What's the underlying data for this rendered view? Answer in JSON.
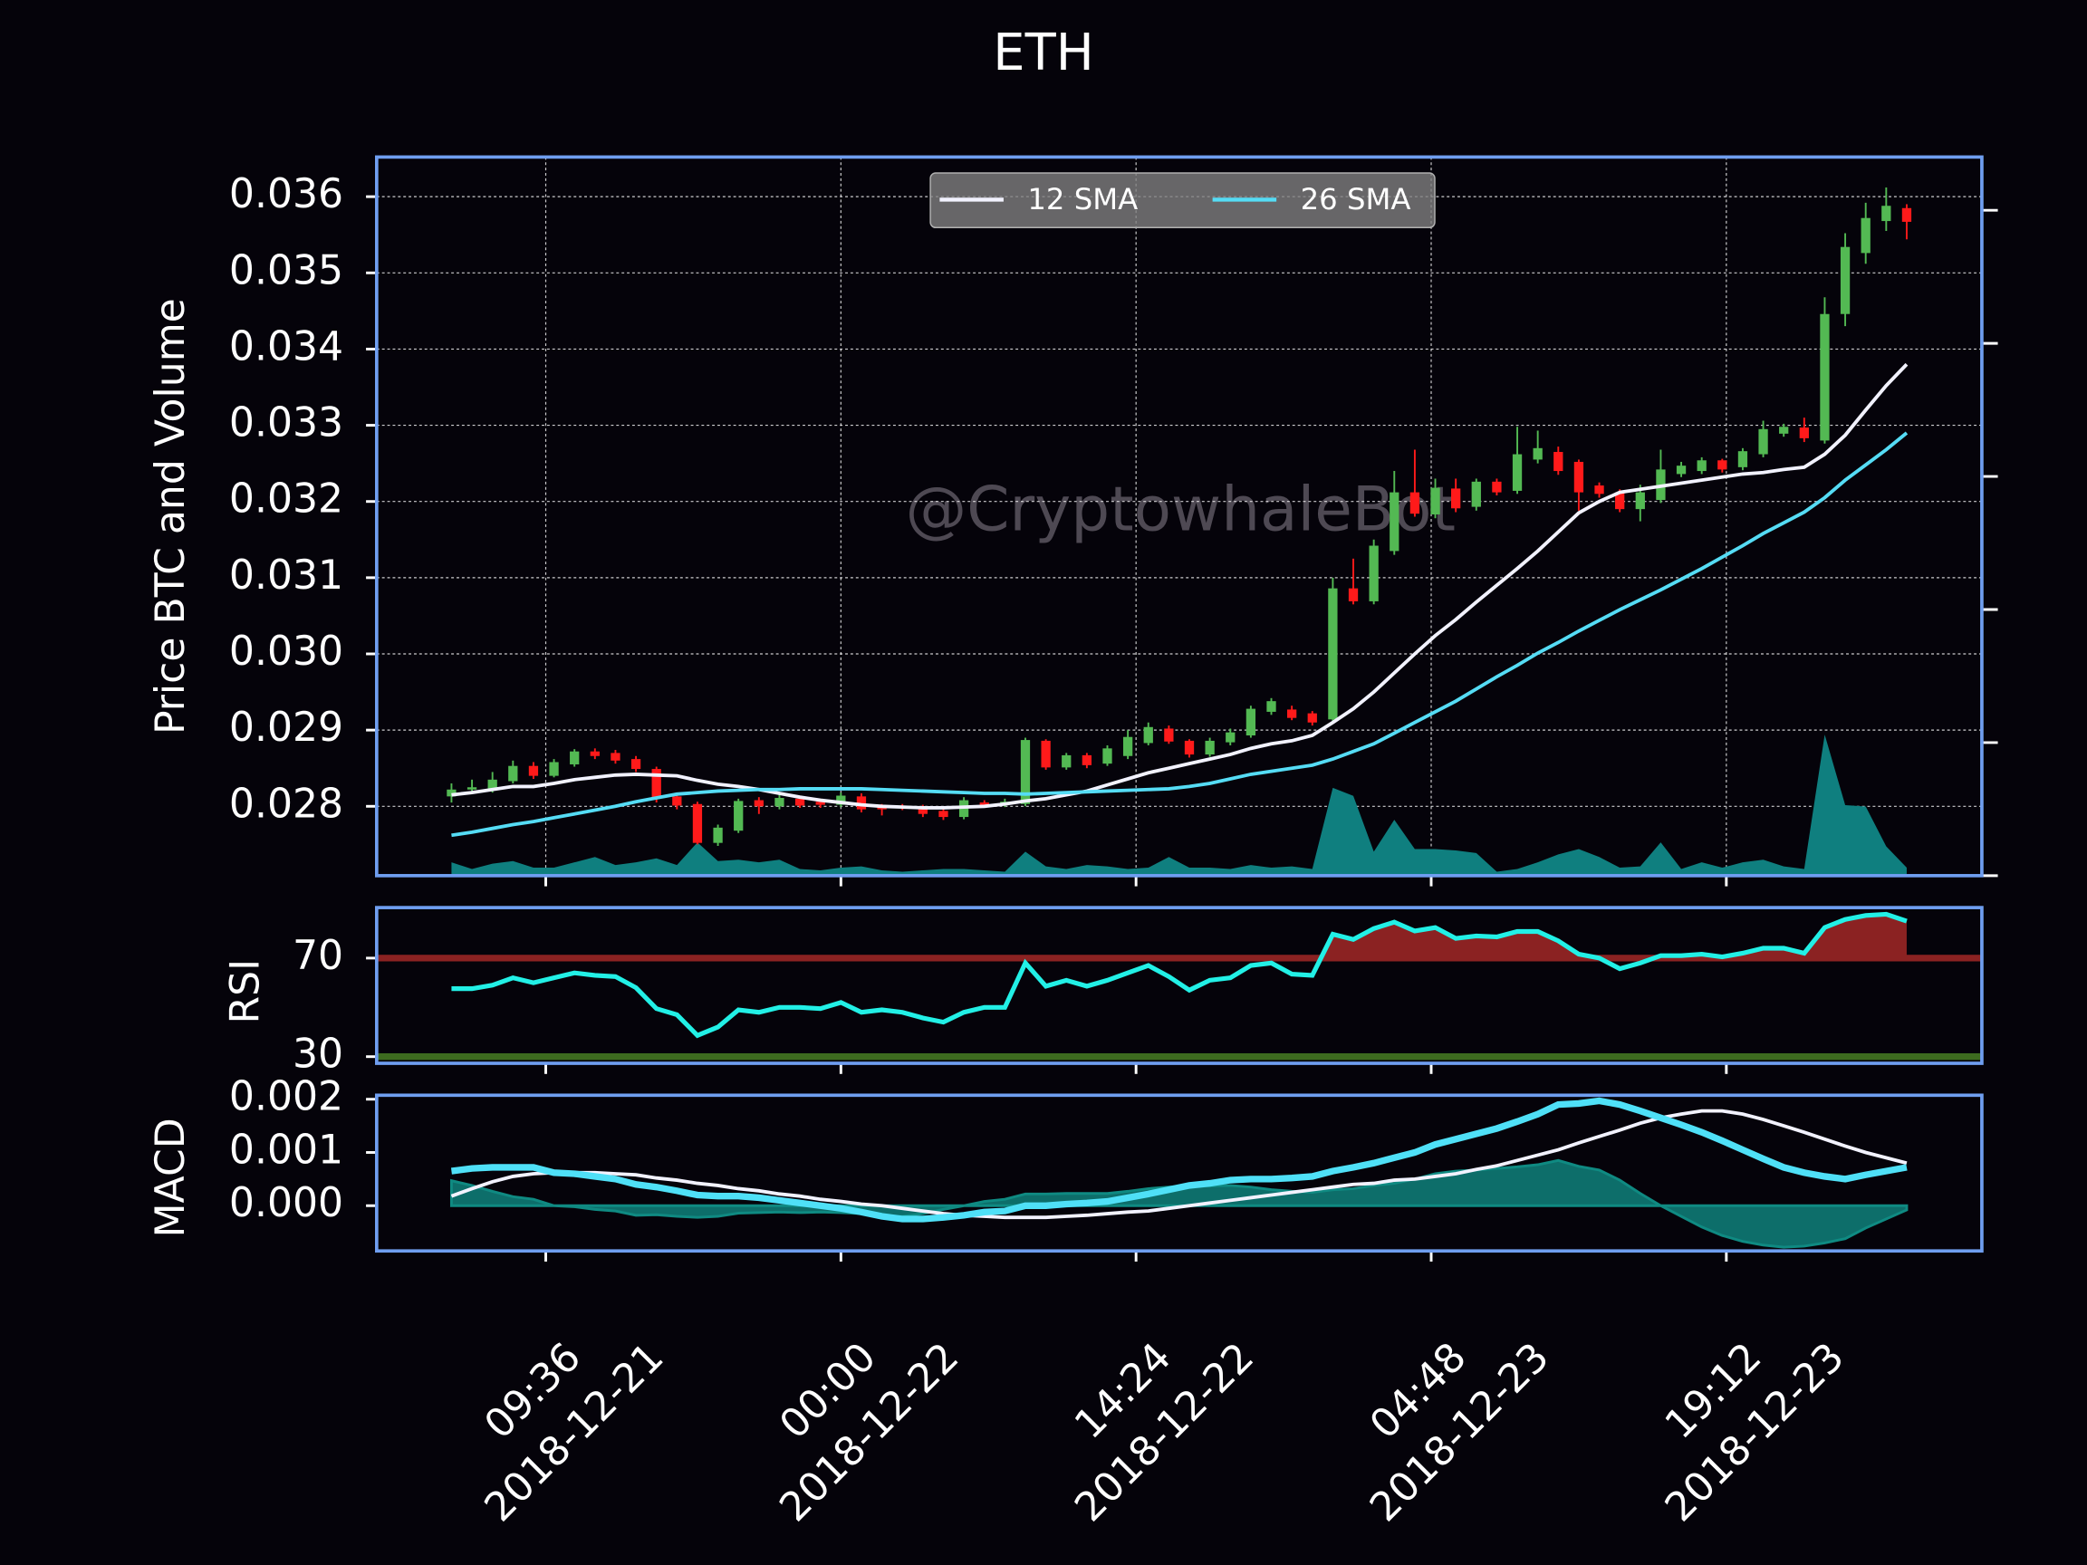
{
  "chart_data": {
    "type": "candlestick",
    "title": "ETH",
    "ylabel": "Price BTC and Volume",
    "watermark": "@CryptowhaleBot",
    "up_color": "#53b953",
    "down_color": "#ff1a1a",
    "grid": true,
    "legend_position": "upper center",
    "x": [
      "2018-12-21 05:00",
      "2018-12-21 06:00",
      "2018-12-21 07:00",
      "2018-12-21 08:00",
      "2018-12-21 09:00",
      "2018-12-21 10:00",
      "2018-12-21 11:00",
      "2018-12-21 12:00",
      "2018-12-21 13:00",
      "2018-12-21 14:00",
      "2018-12-21 15:00",
      "2018-12-21 16:00",
      "2018-12-21 17:00",
      "2018-12-21 18:00",
      "2018-12-21 19:00",
      "2018-12-21 20:00",
      "2018-12-21 21:00",
      "2018-12-21 22:00",
      "2018-12-21 23:00",
      "2018-12-22 00:00",
      "2018-12-22 01:00",
      "2018-12-22 02:00",
      "2018-12-22 03:00",
      "2018-12-22 04:00",
      "2018-12-22 05:00",
      "2018-12-22 06:00",
      "2018-12-22 07:00",
      "2018-12-22 08:00",
      "2018-12-22 09:00",
      "2018-12-22 10:00",
      "2018-12-22 11:00",
      "2018-12-22 12:00",
      "2018-12-22 13:00",
      "2018-12-22 14:00",
      "2018-12-22 15:00",
      "2018-12-22 16:00",
      "2018-12-22 17:00",
      "2018-12-22 18:00",
      "2018-12-22 19:00",
      "2018-12-22 20:00",
      "2018-12-22 21:00",
      "2018-12-22 22:00",
      "2018-12-22 23:00",
      "2018-12-23 00:00",
      "2018-12-23 01:00",
      "2018-12-23 02:00",
      "2018-12-23 03:00",
      "2018-12-23 04:00",
      "2018-12-23 05:00",
      "2018-12-23 06:00",
      "2018-12-23 07:00",
      "2018-12-23 08:00",
      "2018-12-23 09:00",
      "2018-12-23 10:00",
      "2018-12-23 11:00",
      "2018-12-23 12:00",
      "2018-12-23 13:00",
      "2018-12-23 14:00",
      "2018-12-23 15:00",
      "2018-12-23 16:00",
      "2018-12-23 17:00",
      "2018-12-23 18:00",
      "2018-12-23 19:00",
      "2018-12-23 20:00",
      "2018-12-23 21:00",
      "2018-12-23 22:00",
      "2018-12-23 23:00",
      "2018-12-24 00:00",
      "2018-12-24 01:00",
      "2018-12-24 02:00",
      "2018-12-24 03:00",
      "2018-12-24 04:00"
    ],
    "open": [
      0.02813,
      0.02822,
      0.02822,
      0.02833,
      0.02853,
      0.0284,
      0.02855,
      0.02872,
      0.0287,
      0.02862,
      0.02849,
      0.02813,
      0.02803,
      0.02752,
      0.02768,
      0.02808,
      0.028,
      0.0281,
      0.02806,
      0.02802,
      0.02813,
      0.028,
      0.028,
      0.02799,
      0.02794,
      0.02786,
      0.02805,
      0.02802,
      0.02803,
      0.02886,
      0.02851,
      0.02867,
      0.02856,
      0.02866,
      0.02883,
      0.02902,
      0.02886,
      0.02868,
      0.02884,
      0.02893,
      0.02924,
      0.02927,
      0.02922,
      0.02914,
      0.03086,
      0.03069,
      0.03135,
      0.03212,
      0.03183,
      0.03217,
      0.03193,
      0.03226,
      0.03214,
      0.03255,
      0.03265,
      0.03252,
      0.03221,
      0.03212,
      0.0319,
      0.03202,
      0.03236,
      0.0324,
      0.03254,
      0.03245,
      0.03262,
      0.03289,
      0.03297,
      0.0328,
      0.03446,
      0.03526,
      0.03568,
      0.03585
    ],
    "high": [
      0.0283,
      0.02835,
      0.02845,
      0.0286,
      0.02858,
      0.02862,
      0.02875,
      0.02876,
      0.02874,
      0.02866,
      0.02852,
      0.02818,
      0.02806,
      0.02776,
      0.0281,
      0.02812,
      0.02818,
      0.02814,
      0.0281,
      0.02818,
      0.02817,
      0.02803,
      0.02803,
      0.02802,
      0.02797,
      0.02812,
      0.02808,
      0.0281,
      0.0289,
      0.02888,
      0.0287,
      0.0287,
      0.0288,
      0.029,
      0.0291,
      0.02906,
      0.02888,
      0.0289,
      0.02902,
      0.02932,
      0.02942,
      0.02932,
      0.02925,
      0.031,
      0.03125,
      0.0315,
      0.0324,
      0.03268,
      0.0323,
      0.0323,
      0.0323,
      0.0323,
      0.03298,
      0.03293,
      0.03272,
      0.03255,
      0.03225,
      0.03216,
      0.03222,
      0.03268,
      0.03252,
      0.03258,
      0.03256,
      0.0327,
      0.03306,
      0.03302,
      0.0331,
      0.03468,
      0.03552,
      0.03592,
      0.03612,
      0.0359
    ],
    "low": [
      0.02805,
      0.02818,
      0.02818,
      0.0283,
      0.02836,
      0.02838,
      0.02852,
      0.02862,
      0.02856,
      0.02845,
      0.02805,
      0.02796,
      0.0275,
      0.02748,
      0.02765,
      0.0279,
      0.02796,
      0.02798,
      0.02798,
      0.02799,
      0.02792,
      0.02788,
      0.02795,
      0.02786,
      0.02782,
      0.02783,
      0.02799,
      0.02799,
      0.028,
      0.02848,
      0.02848,
      0.0285,
      0.02853,
      0.02862,
      0.0288,
      0.02882,
      0.02864,
      0.02865,
      0.0288,
      0.0289,
      0.0292,
      0.02913,
      0.02906,
      0.0291,
      0.03065,
      0.03065,
      0.0313,
      0.0318,
      0.03178,
      0.03186,
      0.03188,
      0.03208,
      0.0321,
      0.0325,
      0.03235,
      0.03188,
      0.03205,
      0.03186,
      0.03174,
      0.03198,
      0.03232,
      0.03236,
      0.03238,
      0.03241,
      0.03258,
      0.03285,
      0.03278,
      0.03276,
      0.0343,
      0.03512,
      0.03555,
      0.03544
    ],
    "close": [
      0.02822,
      0.02825,
      0.02835,
      0.02853,
      0.0284,
      0.02858,
      0.02872,
      0.02866,
      0.0286,
      0.02849,
      0.02811,
      0.02801,
      0.02752,
      0.02772,
      0.02807,
      0.028,
      0.02811,
      0.02801,
      0.02802,
      0.02814,
      0.02796,
      0.02796,
      0.02799,
      0.0279,
      0.02786,
      0.02808,
      0.02802,
      0.02806,
      0.02887,
      0.02851,
      0.02867,
      0.02854,
      0.02876,
      0.02891,
      0.02904,
      0.02885,
      0.02868,
      0.02886,
      0.02897,
      0.02928,
      0.02938,
      0.02916,
      0.0291,
      0.03086,
      0.03069,
      0.03142,
      0.03212,
      0.03184,
      0.03218,
      0.03191,
      0.03226,
      0.03212,
      0.03262,
      0.0327,
      0.0324,
      0.03212,
      0.0321,
      0.0319,
      0.03212,
      0.03242,
      0.03247,
      0.03254,
      0.03242,
      0.03266,
      0.03295,
      0.03298,
      0.03283,
      0.03446,
      0.03534,
      0.03572,
      0.03588,
      0.03567
    ],
    "series": [
      {
        "name": "12 SMA",
        "color": "#f2f2ff",
        "values": [
          0.02815,
          0.02818,
          0.02822,
          0.02826,
          0.02826,
          0.0283,
          0.02835,
          0.02838,
          0.02841,
          0.02842,
          0.02841,
          0.0284,
          0.02834,
          0.02829,
          0.02826,
          0.02822,
          0.02817,
          0.02812,
          0.02808,
          0.02805,
          0.02802,
          0.028,
          0.02799,
          0.02798,
          0.02798,
          0.02799,
          0.028,
          0.02803,
          0.02807,
          0.0281,
          0.02815,
          0.0282,
          0.02828,
          0.02836,
          0.02844,
          0.0285,
          0.02856,
          0.02862,
          0.02868,
          0.02876,
          0.02882,
          0.02886,
          0.02893,
          0.0291,
          0.02928,
          0.0295,
          0.02975,
          0.03,
          0.03024,
          0.03045,
          0.03068,
          0.0309,
          0.03112,
          0.03135,
          0.0316,
          0.03185,
          0.032,
          0.03212,
          0.03216,
          0.0322,
          0.03224,
          0.03228,
          0.03232,
          0.03236,
          0.03238,
          0.03242,
          0.03245,
          0.03262,
          0.03287,
          0.0332,
          0.03352,
          0.0338
        ]
      },
      {
        "name": "26 SMA",
        "color": "#55dcf5",
        "values": [
          0.02762,
          0.02766,
          0.02771,
          0.02776,
          0.0278,
          0.02785,
          0.0279,
          0.02795,
          0.028,
          0.02806,
          0.02811,
          0.02816,
          0.02818,
          0.0282,
          0.02821,
          0.02822,
          0.02822,
          0.02823,
          0.02823,
          0.02823,
          0.02823,
          0.02822,
          0.02821,
          0.0282,
          0.02819,
          0.02818,
          0.02817,
          0.02817,
          0.02816,
          0.02817,
          0.02818,
          0.02819,
          0.0282,
          0.02821,
          0.02822,
          0.02823,
          0.02826,
          0.0283,
          0.02836,
          0.02842,
          0.02846,
          0.0285,
          0.02854,
          0.02862,
          0.02872,
          0.02882,
          0.02896,
          0.0291,
          0.02924,
          0.02938,
          0.02954,
          0.0297,
          0.02985,
          0.03001,
          0.03015,
          0.0303,
          0.03044,
          0.03058,
          0.03071,
          0.03084,
          0.03098,
          0.03112,
          0.03127,
          0.03142,
          0.03158,
          0.03172,
          0.03186,
          0.03205,
          0.03228,
          0.03248,
          0.03268,
          0.0329
        ]
      }
    ],
    "volume": {
      "color": "#0f7f7f",
      "axis": "y2",
      "values": [
        0.1,
        0.05,
        0.09,
        0.11,
        0.06,
        0.06,
        0.1,
        0.14,
        0.08,
        0.1,
        0.13,
        0.08,
        0.25,
        0.11,
        0.12,
        0.1,
        0.12,
        0.05,
        0.04,
        0.06,
        0.07,
        0.04,
        0.03,
        0.04,
        0.05,
        0.05,
        0.04,
        0.03,
        0.18,
        0.07,
        0.05,
        0.08,
        0.07,
        0.05,
        0.06,
        0.14,
        0.06,
        0.06,
        0.05,
        0.08,
        0.06,
        0.07,
        0.05,
        0.66,
        0.6,
        0.18,
        0.42,
        0.2,
        0.2,
        0.19,
        0.17,
        0.03,
        0.05,
        0.1,
        0.16,
        0.2,
        0.14,
        0.06,
        0.07,
        0.25,
        0.05,
        0.1,
        0.06,
        0.1,
        0.12,
        0.07,
        0.05,
        1.06,
        0.53,
        0.52,
        0.22,
        0.06
      ]
    },
    "xlim": [
      "2018-12-21 01:21",
      "2018-12-24 07:40"
    ],
    "xticks": [
      {
        "value": "2018-12-21 09:36",
        "label": [
          "09:36",
          "2018-12-21"
        ]
      },
      {
        "value": "2018-12-22 00:00",
        "label": [
          "00:00",
          "2018-12-22"
        ]
      },
      {
        "value": "2018-12-22 14:24",
        "label": [
          "14:24",
          "2018-12-22"
        ]
      },
      {
        "value": "2018-12-23 04:48",
        "label": [
          "04:48",
          "2018-12-23"
        ]
      },
      {
        "value": "2018-12-23 19:12",
        "label": [
          "19:12",
          "2018-12-23"
        ]
      }
    ],
    "ylim": [
      0.02709,
      0.03652
    ],
    "yticks": [
      0.028,
      0.029,
      {
        "value": 0.03,
        "label": "0.030"
      },
      0.031,
      0.032,
      0.033,
      0.034,
      0.035,
      0.036
    ],
    "y2lim": [
      0,
      5.4
    ],
    "y2ticks": [
      0,
      1,
      2,
      3,
      4,
      5
    ],
    "rsi": {
      "ylabel": "RSI",
      "color": "#22f0e6",
      "fill_color": "#8b2222",
      "ylim": [
        27.3,
        90.5
      ],
      "yticks": [
        30,
        70
      ],
      "hlines": [
        {
          "value": 70,
          "color": "#8b2222"
        },
        {
          "value": 30,
          "color": "#3d6b1f"
        }
      ],
      "values": [
        57.6,
        57.6,
        59,
        62,
        60,
        62,
        64,
        63,
        62.5,
        58,
        49.5,
        47,
        38.6,
        42,
        49,
        48,
        50,
        50,
        49.5,
        52,
        48,
        49,
        48,
        45.7,
        44,
        48,
        50,
        50,
        68,
        58.6,
        61,
        58.6,
        61,
        64,
        67,
        62.5,
        57,
        61,
        62,
        67,
        68,
        63.5,
        63,
        79.7,
        77.6,
        82,
        84.6,
        81,
        82.4,
        78,
        79,
        78.6,
        80.8,
        80.8,
        77,
        71.6,
        70,
        65.7,
        68,
        71,
        71,
        71.6,
        70.5,
        72,
        74,
        74,
        72,
        82.4,
        85.7,
        87.3,
        87.8,
        85
      ]
    },
    "macd": {
      "ylabel": "MACD",
      "ylim": [
        -0.00085,
        0.002075
      ],
      "yticks": [
        {
          "value": 0,
          "label": "0.000"
        },
        {
          "value": 0.001,
          "label": "0.001"
        },
        {
          "value": 0.002,
          "label": "0.002"
        }
      ],
      "macd_color": "#4fe0f7",
      "signal_color": "#f2f2ff",
      "hist_color": "#0f8a82",
      "macd": [
        0.00065,
        0.0007,
        0.00072,
        0.00072,
        0.00072,
        0.00062,
        0.0006,
        0.00055,
        0.0005,
        0.0004,
        0.00035,
        0.00028,
        0.0002,
        0.00018,
        0.00018,
        0.00015,
        0.0001,
        5e-05,
        0,
        -5e-05,
        -0.00012,
        -0.0002,
        -0.00025,
        -0.00025,
        -0.00022,
        -0.00018,
        -0.00012,
        -0.0001,
        0,
        0,
        3e-05,
        5e-05,
        8e-05,
        0.00015,
        0.00022,
        0.0003,
        0.00038,
        0.00042,
        0.00048,
        0.0005,
        0.0005,
        0.00052,
        0.00055,
        0.00065,
        0.00072,
        0.0008,
        0.0009,
        0.001,
        0.00115,
        0.00125,
        0.00135,
        0.00145,
        0.00158,
        0.00172,
        0.0019,
        0.00192,
        0.00197,
        0.0019,
        0.00178,
        0.00165,
        0.00152,
        0.00138,
        0.00122,
        0.00105,
        0.00088,
        0.00072,
        0.00062,
        0.00055,
        0.0005,
        0.00058,
        0.00065,
        0.00072
      ],
      "signal": [
        0.00018,
        0.00032,
        0.00045,
        0.00055,
        0.0006,
        0.00062,
        0.00062,
        0.00062,
        0.0006,
        0.00058,
        0.00052,
        0.00048,
        0.00042,
        0.00038,
        0.00032,
        0.00028,
        0.00022,
        0.00018,
        0.00012,
        8e-05,
        3e-05,
        0,
        -5e-05,
        -0.0001,
        -0.00015,
        -0.00018,
        -0.0002,
        -0.00022,
        -0.00022,
        -0.00022,
        -0.0002,
        -0.00018,
        -0.00015,
        -0.00012,
        -0.0001,
        -5e-05,
        0,
        5e-05,
        0.0001,
        0.00015,
        0.0002,
        0.00025,
        0.0003,
        0.00035,
        0.0004,
        0.00042,
        0.00048,
        0.0005,
        0.00055,
        0.0006,
        0.00068,
        0.00075,
        0.00085,
        0.00095,
        0.00105,
        0.00118,
        0.0013,
        0.00142,
        0.00155,
        0.00165,
        0.00172,
        0.00178,
        0.00178,
        0.00172,
        0.00162,
        0.0015,
        0.00138,
        0.00125,
        0.00112,
        0.001,
        0.0009,
        0.0008
      ],
      "hist": [
        0.00047,
        0.00038,
        0.00027,
        0.00017,
        0.00012,
        0,
        -2e-05,
        -7e-05,
        -0.0001,
        -0.00018,
        -0.00017,
        -0.0002,
        -0.00022,
        -0.0002,
        -0.00014,
        -0.00013,
        -0.00012,
        -0.00013,
        -0.00012,
        -0.00013,
        -0.00015,
        -0.0002,
        -0.0002,
        -0.00015,
        -7e-05,
        0,
        8e-05,
        0.00012,
        0.00022,
        0.00022,
        0.00023,
        0.00023,
        0.00023,
        0.00027,
        0.00032,
        0.00035,
        0.00038,
        0.00037,
        0.00038,
        0.00035,
        0.0003,
        0.00027,
        0.00025,
        0.0003,
        0.00032,
        0.00038,
        0.00042,
        0.0005,
        0.0006,
        0.00065,
        0.00067,
        0.0007,
        0.00073,
        0.00077,
        0.00085,
        0.00074,
        0.00067,
        0.00048,
        0.00023,
        0,
        -0.0002,
        -0.0004,
        -0.00056,
        -0.00067,
        -0.00074,
        -0.00078,
        -0.00076,
        -0.0007,
        -0.00062,
        -0.00042,
        -0.00025,
        -8e-05
      ]
    }
  }
}
